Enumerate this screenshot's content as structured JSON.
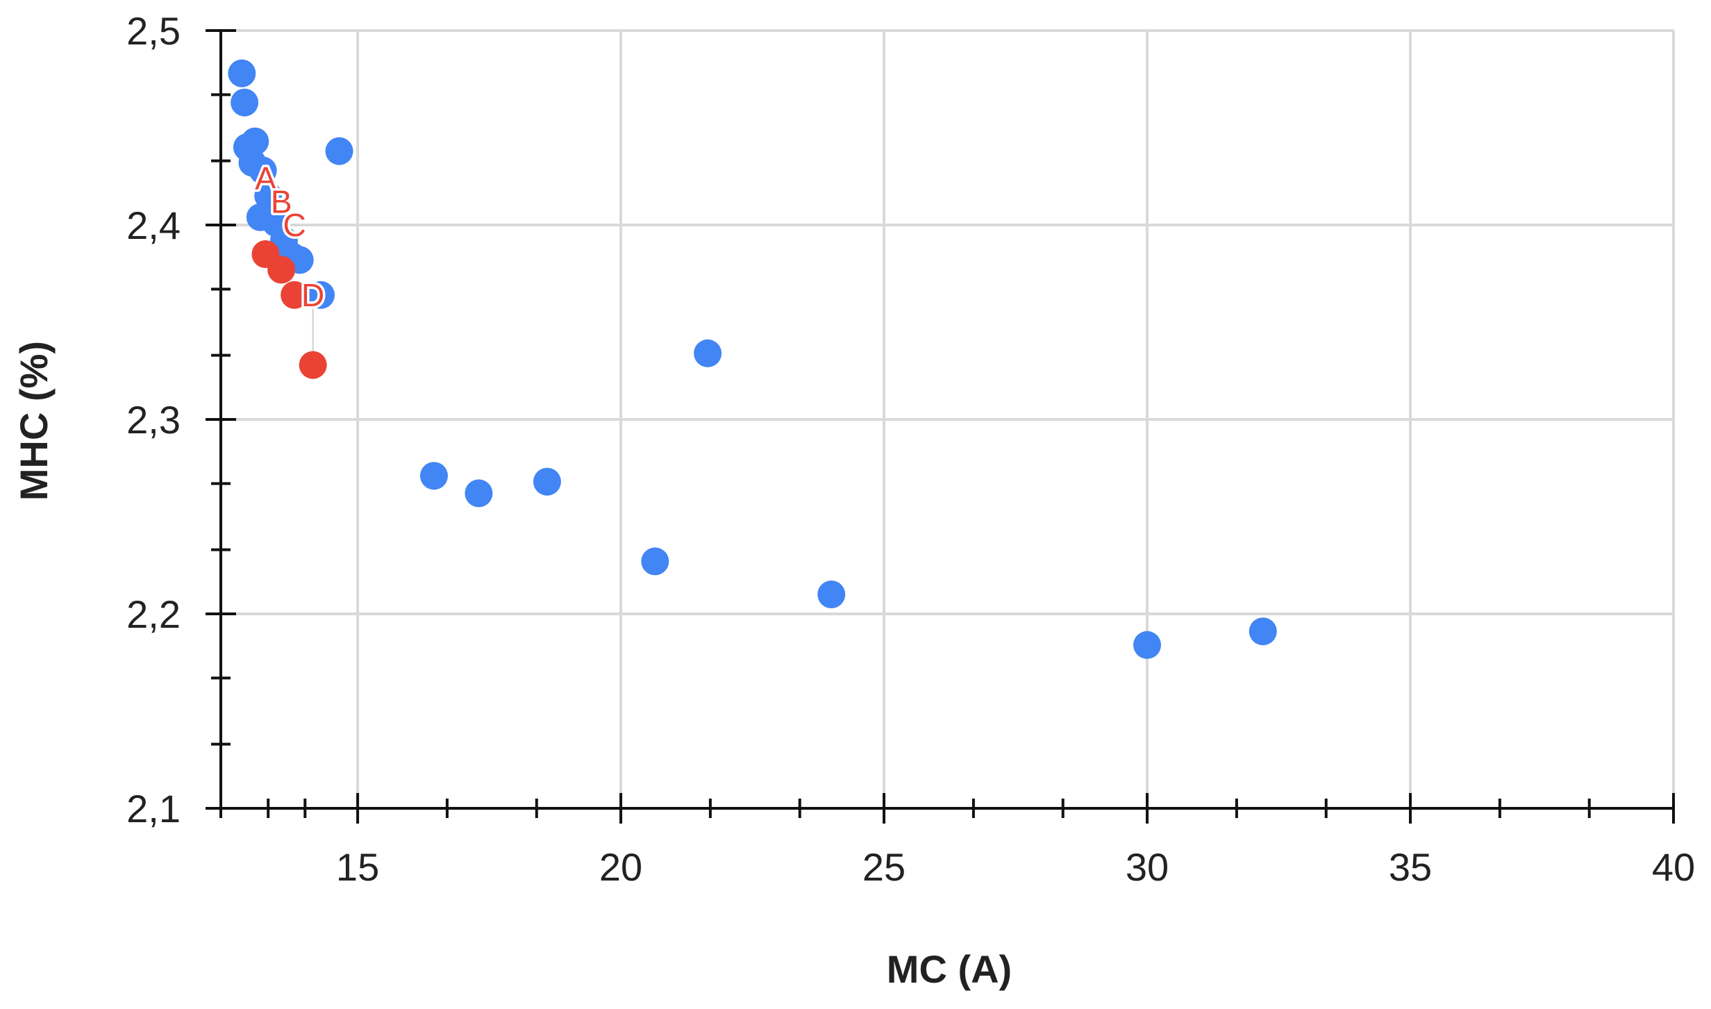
{
  "chart_data": {
    "type": "scatter",
    "title": "",
    "xlabel": "MC (A)",
    "ylabel": "MHC (%)",
    "xlim": [
      12.4,
      40
    ],
    "ylim": [
      2.1,
      2.5
    ],
    "grid": true,
    "x_ticks": [
      {
        "value": 15,
        "label": "15"
      },
      {
        "value": 20,
        "label": "20"
      },
      {
        "value": 25,
        "label": "25"
      },
      {
        "value": 30,
        "label": "30"
      },
      {
        "value": 35,
        "label": "35"
      },
      {
        "value": 40,
        "label": "40"
      }
    ],
    "y_ticks": [
      {
        "value": 2.1,
        "label": "2,1"
      },
      {
        "value": 2.2,
        "label": "2,2"
      },
      {
        "value": 2.3,
        "label": "2,3"
      },
      {
        "value": 2.4,
        "label": "2,4"
      },
      {
        "value": 2.5,
        "label": "2,5"
      }
    ],
    "x_minor_ticks": [
      12.4,
      13.3,
      14.0,
      16.7,
      18.4,
      21.7,
      23.4,
      26.7,
      28.4,
      31.7,
      33.4,
      36.7,
      38.4
    ],
    "y_minor_ticks": [
      2.133,
      2.167,
      2.233,
      2.267,
      2.333,
      2.367,
      2.433,
      2.467
    ],
    "series": [
      {
        "color": "#4285f4",
        "points": [
          {
            "x": 12.8,
            "y": 2.478
          },
          {
            "x": 12.85,
            "y": 2.463
          },
          {
            "x": 12.9,
            "y": 2.44
          },
          {
            "x": 13.05,
            "y": 2.443
          },
          {
            "x": 13.0,
            "y": 2.432
          },
          {
            "x": 13.2,
            "y": 2.428
          },
          {
            "x": 13.3,
            "y": 2.415
          },
          {
            "x": 13.15,
            "y": 2.404
          },
          {
            "x": 13.45,
            "y": 2.401
          },
          {
            "x": 13.6,
            "y": 2.392
          },
          {
            "x": 13.75,
            "y": 2.384
          },
          {
            "x": 13.9,
            "y": 2.382
          },
          {
            "x": 14.3,
            "y": 2.364
          },
          {
            "x": 14.65,
            "y": 2.438
          },
          {
            "x": 16.45,
            "y": 2.271
          },
          {
            "x": 17.3,
            "y": 2.262
          },
          {
            "x": 18.6,
            "y": 2.268
          },
          {
            "x": 20.65,
            "y": 2.227
          },
          {
            "x": 21.65,
            "y": 2.334
          },
          {
            "x": 24.0,
            "y": 2.21
          },
          {
            "x": 30.0,
            "y": 2.184
          },
          {
            "x": 32.2,
            "y": 2.191
          }
        ]
      },
      {
        "color": "#ea4335",
        "points": [
          {
            "x": 13.25,
            "y": 2.385
          },
          {
            "x": 13.55,
            "y": 2.377
          },
          {
            "x": 13.8,
            "y": 2.364
          },
          {
            "x": 14.15,
            "y": 2.328
          }
        ]
      }
    ],
    "annotations": [
      {
        "text": "A",
        "x": 13.25,
        "y": 2.424
      },
      {
        "text": "B",
        "x": 13.55,
        "y": 2.412
      },
      {
        "text": "C",
        "x": 13.8,
        "y": 2.4
      },
      {
        "text": "D",
        "x": 14.15,
        "y": 2.364
      }
    ]
  }
}
